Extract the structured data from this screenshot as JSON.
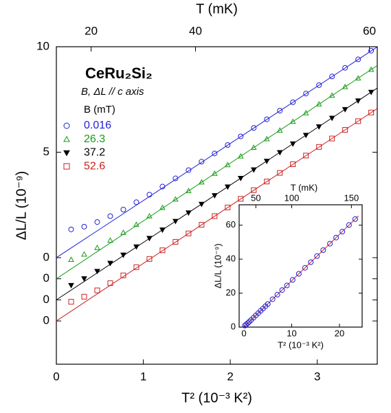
{
  "chart_data": [
    {
      "type": "scatter",
      "title": "CeRu₂Si₂",
      "subtitle": "B, ΔL // c axis",
      "legend_title": "B (mT)",
      "x_label": "T² (10⁻³ K²)",
      "y_label": "ΔL/L (10⁻⁹)",
      "x2_label": "T (mK)",
      "xlim": [
        0,
        3.69
      ],
      "ylim": [
        -5.05,
        10
      ],
      "xticks": [
        0,
        1,
        2,
        3
      ],
      "yticks": [
        10,
        5,
        0,
        {
          "value": -1,
          "label": "0"
        },
        {
          "value": -2,
          "label": "0"
        },
        {
          "value": -3,
          "label": "0"
        }
      ],
      "x2ticks": [
        20,
        40,
        60
      ],
      "x": [
        0.17,
        0.32,
        0.47,
        0.62,
        0.77,
        0.92,
        1.07,
        1.22,
        1.37,
        1.52,
        1.67,
        1.82,
        1.97,
        2.12,
        2.27,
        2.42,
        2.57,
        2.72,
        2.87,
        3.02,
        3.17,
        3.32,
        3.47,
        3.62
      ],
      "series": [
        {
          "name": "0.016",
          "color": "#1f1fd6",
          "marker": "circle",
          "filled": false,
          "values": [
            1.34,
            1.47,
            1.69,
            1.97,
            2.28,
            2.63,
            2.99,
            3.37,
            3.76,
            4.15,
            4.55,
            4.94,
            5.34,
            5.75,
            6.15,
            6.56,
            6.97,
            7.37,
            7.78,
            8.18,
            8.59,
            9.0,
            9.4,
            9.81
          ]
        },
        {
          "name": "26.3",
          "color": "#159a15",
          "marker": "triangle-up",
          "filled": false,
          "values": [
            -0.09,
            0.16,
            0.47,
            0.82,
            1.19,
            1.57,
            1.97,
            2.37,
            2.77,
            3.17,
            3.58,
            3.99,
            4.4,
            4.81,
            5.22,
            5.63,
            6.04,
            6.45,
            6.86,
            7.28,
            7.69,
            8.1,
            8.51,
            8.92
          ]
        },
        {
          "name": "37.2",
          "color": "#000000",
          "marker": "triangle-down",
          "filled": true,
          "values": [
            -1.31,
            -0.99,
            -0.64,
            -0.26,
            0.13,
            0.52,
            0.92,
            1.32,
            1.73,
            2.13,
            2.54,
            2.95,
            3.36,
            3.77,
            4.17,
            4.58,
            4.99,
            5.4,
            5.81,
            6.21,
            6.62,
            7.03,
            7.44,
            7.85
          ]
        },
        {
          "name": "52.6",
          "color": "#cc1f1f",
          "marker": "square",
          "filled": false,
          "values": [
            -2.09,
            -1.85,
            -1.55,
            -1.21,
            -0.84,
            -0.45,
            -0.06,
            0.35,
            0.75,
            1.15,
            1.56,
            1.97,
            2.38,
            2.79,
            3.2,
            3.61,
            4.02,
            4.43,
            4.84,
            5.25,
            5.65,
            6.06,
            6.47,
            6.88
          ]
        }
      ],
      "fits": [
        {
          "color": "#1f1fd6",
          "x": [
            0,
            3.69
          ],
          "values": [
            0,
            9.99
          ]
        },
        {
          "color": "#159a15",
          "x": [
            0,
            3.69
          ],
          "values": [
            -1,
            9.11
          ]
        },
        {
          "color": "#000000",
          "x": [
            0,
            3.69
          ],
          "values": [
            -2,
            8.04
          ]
        },
        {
          "color": "#cc1f1f",
          "x": [
            0,
            3.69
          ],
          "values": [
            -3,
            7.07
          ]
        }
      ]
    },
    {
      "type": "scatter",
      "x_label": "T² (10⁻³ K²)",
      "y_label": "ΔL/L (10⁻⁹)",
      "x2_label": "T (mK)",
      "xlim": [
        -1,
        24.75
      ],
      "ylim": [
        0,
        72
      ],
      "xticks": [
        0,
        10,
        20
      ],
      "yticks": [
        0,
        20,
        40,
        60
      ],
      "x2ticks": [
        50,
        100,
        150
      ],
      "x": [
        0.2,
        0.5,
        0.8,
        1.1,
        1.5,
        2,
        2.5,
        3,
        3.5,
        4,
        4.5,
        5,
        6,
        7,
        8,
        9,
        10.2,
        11.5,
        12.8,
        14,
        15.3,
        16.6,
        18,
        19.3,
        20.6,
        22,
        23.3
      ],
      "series": [
        {
          "color": "#1f1fd6",
          "marker": "circle",
          "filled": false,
          "values": [
            0.9,
            1.6,
            2.3,
            3.1,
            4.2,
            5.5,
            6.9,
            8.2,
            9.6,
            10.9,
            12.3,
            13.6,
            16.4,
            19.1,
            21.8,
            24.5,
            27.8,
            31.4,
            34.9,
            38.2,
            41.8,
            45.3,
            49.1,
            52.7,
            56.2,
            60.1,
            63.6
          ]
        }
      ],
      "fits": [
        {
          "color": "#cc1f1f",
          "x": [
            0,
            24
          ],
          "values": [
            0,
            65.5
          ]
        }
      ]
    }
  ]
}
